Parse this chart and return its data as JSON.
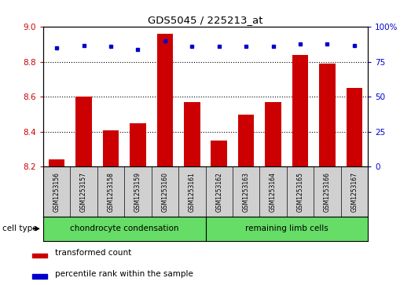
{
  "title": "GDS5045 / 225213_at",
  "samples": [
    "GSM1253156",
    "GSM1253157",
    "GSM1253158",
    "GSM1253159",
    "GSM1253160",
    "GSM1253161",
    "GSM1253162",
    "GSM1253163",
    "GSM1253164",
    "GSM1253165",
    "GSM1253166",
    "GSM1253167"
  ],
  "transformed_count": [
    8.24,
    8.6,
    8.41,
    8.45,
    8.96,
    8.57,
    8.35,
    8.5,
    8.57,
    8.84,
    8.79,
    8.65
  ],
  "percentile_rank": [
    85,
    87,
    86,
    84,
    90,
    86,
    86,
    86,
    86,
    88,
    88,
    87
  ],
  "ylim_left": [
    8.2,
    9.0
  ],
  "ylim_right": [
    0,
    100
  ],
  "yticks_left": [
    8.2,
    8.4,
    8.6,
    8.8,
    9.0
  ],
  "yticks_right": [
    0,
    25,
    50,
    75,
    100
  ],
  "bar_color": "#cc0000",
  "dot_color": "#0000cc",
  "grid_color": "#000000",
  "group1_label": "chondrocyte condensation",
  "group2_label": "remaining limb cells",
  "group_color": "#66dd66",
  "sample_box_color": "#d0d0d0",
  "cell_type_label": "cell type",
  "legend_bar_label": "transformed count",
  "legend_dot_label": "percentile rank within the sample",
  "left_axis_color": "#cc0000",
  "right_axis_color": "#0000cc"
}
